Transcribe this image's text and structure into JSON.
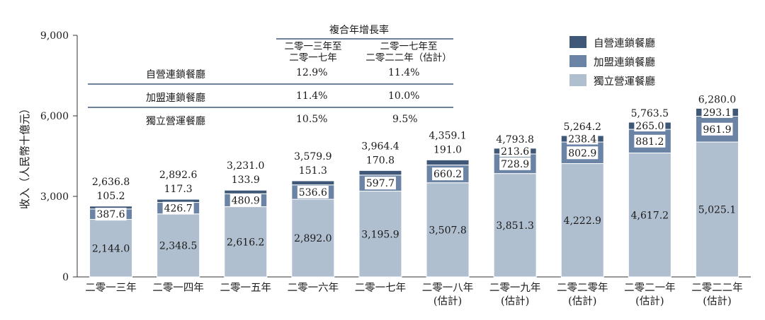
{
  "chart_data": {
    "type": "bar",
    "stacked": true,
    "ylabel": "收入（人民幣十億元）",
    "ylim": [
      0,
      9000
    ],
    "yticks": [
      "0",
      "3,000",
      "6,000",
      "9,000"
    ],
    "categories": [
      [
        "二零一三年"
      ],
      [
        "二零一四年"
      ],
      [
        "二零一五年"
      ],
      [
        "二零一六年"
      ],
      [
        "二零一七年"
      ],
      [
        "二零一八年",
        "(估計)"
      ],
      [
        "二零一九年",
        "(估計)"
      ],
      [
        "二零二零年",
        "(估計)"
      ],
      [
        "二零二一年",
        "(估計)"
      ],
      [
        "二零二二年",
        "(估計)"
      ]
    ],
    "series": [
      {
        "name": "獨立營運餐廳",
        "color": "#b0bfcf",
        "values": [
          2144.0,
          2348.5,
          2616.2,
          2892.0,
          3195.9,
          3507.8,
          3851.3,
          4222.9,
          4617.2,
          5025.1
        ],
        "labels": [
          "2,144.0",
          "2,348.5",
          "2,616.2",
          "2,892.0",
          "3,195.9",
          "3,507.8",
          "3,851.3",
          "4,222.9",
          "4,617.2",
          "5,025.1"
        ]
      },
      {
        "name": "加盟連鎖餐廳",
        "color": "#6b84a6",
        "values": [
          387.6,
          426.7,
          480.9,
          536.6,
          597.7,
          660.2,
          728.9,
          802.9,
          881.2,
          961.9
        ],
        "labels": [
          "387.6",
          "426.7",
          "480.9",
          "536.6",
          "597.7",
          "660.2",
          "728.9",
          "802.9",
          "881.2",
          "961.9"
        ]
      },
      {
        "name": "自營連鎖餐廳",
        "color": "#3f5878",
        "values": [
          105.2,
          117.3,
          133.9,
          151.3,
          170.8,
          191.0,
          213.6,
          238.4,
          265.0,
          293.1
        ],
        "labels": [
          "105.2",
          "117.3",
          "133.9",
          "151.3",
          "170.8",
          "191.0",
          "213.6",
          "238.4",
          "265.0",
          "293.1"
        ]
      }
    ],
    "totals": [
      "2,636.8",
      "2,892.6",
      "3,231.0",
      "3,579.9",
      "3,964.4",
      "4,359.1",
      "4,793.8",
      "5,264.2",
      "5,763.5",
      "6,280.0"
    ],
    "legend_position": "top-right",
    "legend_order": [
      "自營連鎖餐廳",
      "加盟連鎖餐廳",
      "獨立營運餐廳"
    ]
  },
  "cagr_table": {
    "title": "複合年增長率",
    "col1": [
      "二零一三年至",
      "二零一七年"
    ],
    "col2": [
      "二零一七年至",
      "二零二二年（估計）"
    ],
    "rows": [
      {
        "label": "自營連鎖餐廳",
        "v1": "12.9%",
        "v2": "11.4%"
      },
      {
        "label": "加盟連鎖餐廳",
        "v1": "11.4%",
        "v2": "10.0%"
      },
      {
        "label": "獨立營運餐廳",
        "v1": "10.5%",
        "v2": "9.5%"
      }
    ]
  }
}
